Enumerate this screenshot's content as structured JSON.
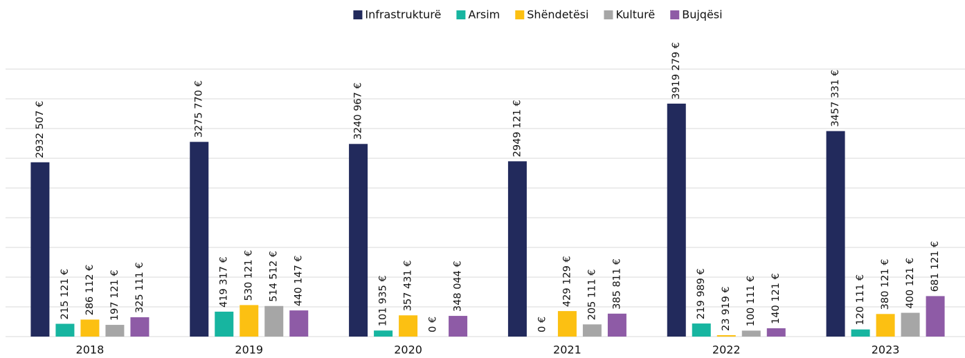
{
  "chart_data": {
    "type": "bar",
    "categories": [
      "2018",
      "2019",
      "2020",
      "2021",
      "2022",
      "2023"
    ],
    "series": [
      {
        "name": "Infrastrukturë",
        "color": "#222a5c",
        "values": [
          2932507,
          3275770,
          3240967,
          2949121,
          3919279,
          3457331
        ],
        "value_labels": [
          "2932 507 €",
          "3275 770 €",
          "3240 967 €",
          "2949 121 €",
          "3919 279 €",
          "3457 331 €"
        ]
      },
      {
        "name": "Arsim",
        "color": "#17b5a0",
        "values": [
          215121,
          419317,
          101935,
          0,
          219989,
          120111
        ],
        "value_labels": [
          "215 121 €",
          "419 317 €",
          "101 935 €",
          "0 €",
          "219 989 €",
          "120 111 €"
        ]
      },
      {
        "name": "Shëndetësi",
        "color": "#fcc012",
        "values": [
          286112,
          530121,
          357431,
          429129,
          23919,
          380121
        ],
        "value_labels": [
          "286 112 €",
          "530 121 €",
          "357 431 €",
          "429 129 €",
          "23 919 €",
          "380 121 €"
        ]
      },
      {
        "name": "Kulturë",
        "color": "#a6a6a6",
        "values": [
          197121,
          514512,
          0,
          205111,
          100111,
          400121
        ],
        "value_labels": [
          "197 121 €",
          "514 512 €",
          "0 €",
          "205 111 €",
          "100 111 €",
          "400 121 €"
        ]
      },
      {
        "name": "Bujqësi",
        "color": "#8e5ba6",
        "values": [
          325111,
          440147,
          348044,
          385811,
          140121,
          681121
        ],
        "value_labels": [
          "325 111 €",
          "440 147 €",
          "348 044 €",
          "385 811 €",
          "140 121 €",
          "681 121 €"
        ]
      }
    ],
    "ylim": [
      0,
      4500000
    ],
    "yticks": [
      0,
      500000,
      1000000,
      1500000,
      2000000,
      2500000,
      3000000,
      3500000,
      4000000,
      4500000
    ],
    "grid": true,
    "legend": "top"
  }
}
